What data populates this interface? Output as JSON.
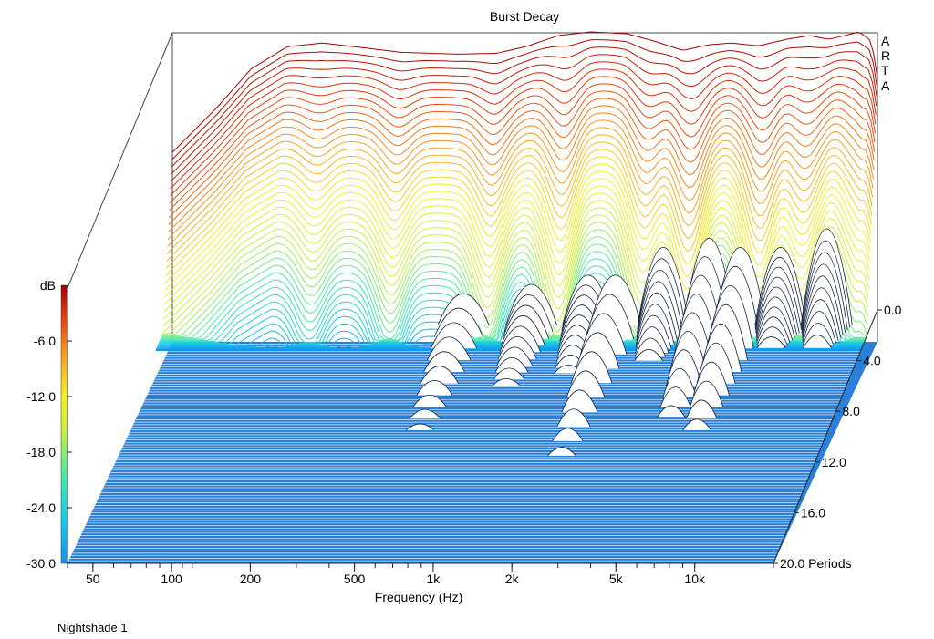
{
  "chart_data": {
    "type": "waterfall",
    "title": "Burst Decay",
    "brand_letters": [
      "A",
      "R",
      "T",
      "A"
    ],
    "xlabel": "Frequency (Hz)",
    "x_scale": "log",
    "x_range_hz": [
      40,
      20000
    ],
    "x_ticks": [
      {
        "v": 50,
        "label": "50"
      },
      {
        "v": 100,
        "label": "100"
      },
      {
        "v": 200,
        "label": "200"
      },
      {
        "v": 500,
        "label": "500"
      },
      {
        "v": 1000,
        "label": "1k"
      },
      {
        "v": 2000,
        "label": "2k"
      },
      {
        "v": 5000,
        "label": "5k"
      },
      {
        "v": 10000,
        "label": "10k"
      }
    ],
    "z_label_unit": "Periods",
    "z_range": [
      0,
      20
    ],
    "z_ticks": [
      {
        "v": 0,
        "label": "0.0"
      },
      {
        "v": 4,
        "label": "4.0"
      },
      {
        "v": 8,
        "label": "8.0"
      },
      {
        "v": 12,
        "label": "12.0"
      },
      {
        "v": 16,
        "label": "16.0"
      },
      {
        "v": 20,
        "label": "20.0 Periods"
      }
    ],
    "y_label": "dB",
    "y_range_db": [
      -30,
      0
    ],
    "y_ticks": [
      {
        "v": -6,
        "label": "-6.0"
      },
      {
        "v": -12,
        "label": "-12.0"
      },
      {
        "v": -18,
        "label": "-18.0"
      },
      {
        "v": -24,
        "label": "-24.0"
      },
      {
        "v": -30,
        "label": "-30.0"
      }
    ],
    "colorbar": {
      "stops": [
        "#1a8fe8",
        "#10c8ee",
        "#40e8b0",
        "#c8f040",
        "#f8f020",
        "#f8a020",
        "#e84010",
        "#a00000"
      ]
    },
    "initial_response_db": [
      [
        40,
        -13
      ],
      [
        60,
        -8
      ],
      [
        80,
        -4
      ],
      [
        110,
        -1.6
      ],
      [
        150,
        -1.2
      ],
      [
        200,
        -1.6
      ],
      [
        300,
        -2.2
      ],
      [
        500,
        -2.4
      ],
      [
        700,
        -2.3
      ],
      [
        900,
        -1.6
      ],
      [
        1200,
        -0.4
      ],
      [
        1600,
        0
      ],
      [
        2200,
        -0.2
      ],
      [
        2800,
        -1.0
      ],
      [
        3600,
        -2.0
      ],
      [
        4500,
        -1.4
      ],
      [
        5500,
        -1.2
      ],
      [
        7000,
        -1.5
      ],
      [
        9000,
        -0.8
      ],
      [
        11000,
        -0.4
      ],
      [
        13000,
        -0.8
      ],
      [
        15000,
        -0.4
      ],
      [
        17000,
        0
      ],
      [
        19000,
        -1.0
      ],
      [
        20000,
        -5
      ]
    ],
    "resonances": [
      {
        "f": 550,
        "end_period": 9.5,
        "db": -27
      },
      {
        "f": 1000,
        "end_period": 6.0,
        "db": -26
      },
      {
        "f": 1650,
        "end_period": 5.0,
        "db": -25
      },
      {
        "f": 2100,
        "end_period": 11.5,
        "db": -25
      },
      {
        "f": 3200,
        "end_period": 4.0,
        "db": -22
      },
      {
        "f": 4800,
        "end_period": 8.5,
        "db": -21
      },
      {
        "f": 6300,
        "end_period": 9.5,
        "db": -22
      },
      {
        "f": 9000,
        "end_period": 3.0,
        "db": -22
      },
      {
        "f": 13500,
        "end_period": 3.0,
        "db": -20
      }
    ],
    "notches": [
      {
        "f": 150,
        "db": -7
      },
      {
        "f": 300,
        "db": -10
      },
      {
        "f": 700,
        "db": -14
      },
      {
        "f": 1300,
        "db": -20
      },
      {
        "f": 2700,
        "db": -18
      },
      {
        "f": 4000,
        "db": -26
      },
      {
        "f": 7500,
        "db": -24
      },
      {
        "f": 11000,
        "db": -18
      },
      {
        "f": 18000,
        "db": -14
      }
    ],
    "slice_count": 45,
    "floor_slice_count": 95
  },
  "footer": {
    "label": "Nightshade 1"
  }
}
